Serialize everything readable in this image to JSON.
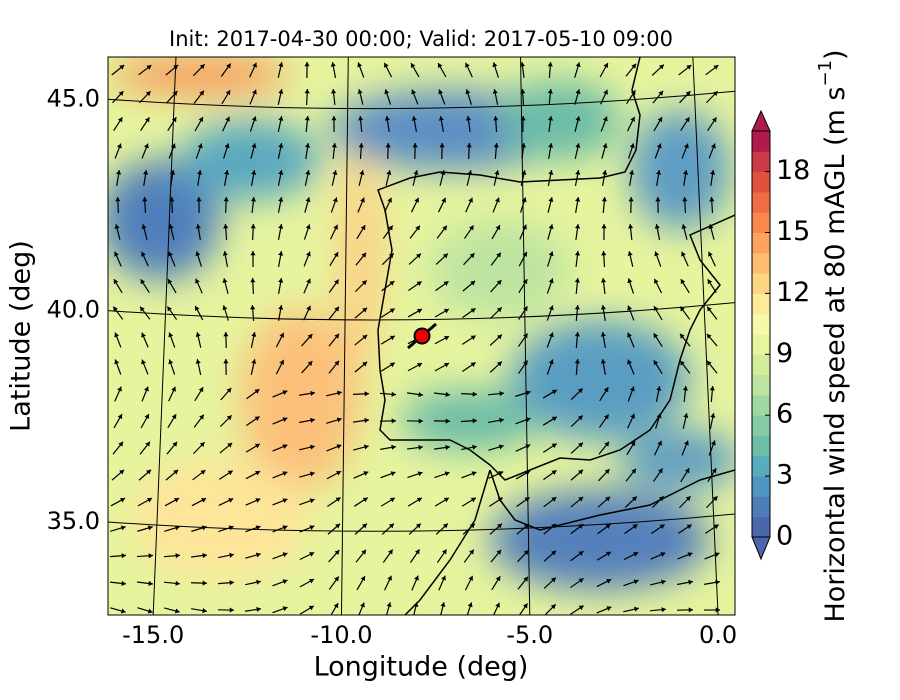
{
  "chart_data": {
    "type": "map",
    "title": "Init: 2017-04-30 00:00; Valid: 2017-05-10 09:00",
    "xlabel": "Longitude (deg)",
    "ylabel": "Latitude (deg)",
    "xlim": [
      -16.2,
      0.45
    ],
    "ylim": [
      32.8,
      46.0
    ],
    "xticks": [
      {
        "value": -15,
        "label": "-15.0"
      },
      {
        "value": -10,
        "label": "-10.0"
      },
      {
        "value": -5,
        "label": "-5.0"
      },
      {
        "value": 0,
        "label": "0.0"
      }
    ],
    "yticks": [
      {
        "value": 35,
        "label": "35.0"
      },
      {
        "value": 40,
        "label": "40.0"
      },
      {
        "value": 45,
        "label": "45.0"
      }
    ],
    "colorbar": {
      "label": "Horizontal wind speed at 80 mAGL (m s",
      "label_sup": "−1",
      "label_end": ")",
      "lim": [
        0,
        20
      ],
      "ticks": [
        0,
        3,
        6,
        9,
        12,
        15,
        18
      ],
      "colors": [
        "#4a66ad",
        "#4d7db8",
        "#4f95c4",
        "#5aabbd",
        "#6dbfa7",
        "#86cba4",
        "#a0d8a3",
        "#bde4a0",
        "#d4ed9d",
        "#e9f59c",
        "#f8f8ac",
        "#fdeb9a",
        "#fed683",
        "#fdbe6f",
        "#fca35e",
        "#f88750",
        "#ef6c45",
        "#e0523f",
        "#cc3a48",
        "#b11b4c"
      ]
    }
  }
}
